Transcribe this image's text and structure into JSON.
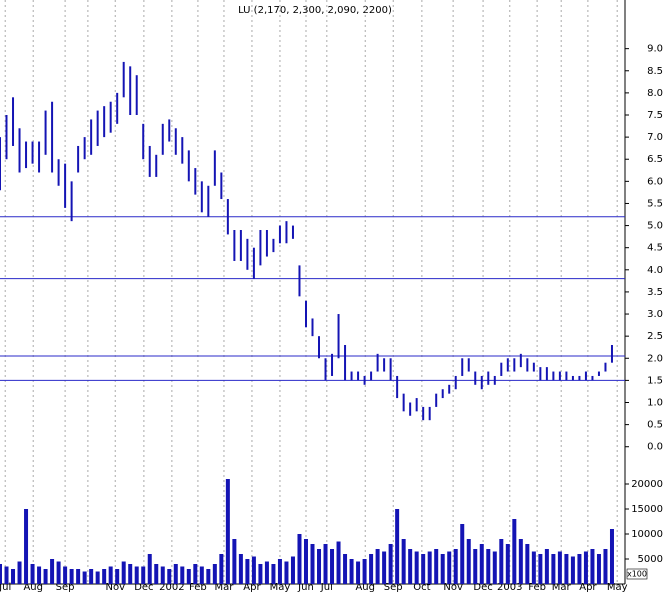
{
  "chart_data": [
    {
      "type": "range-bar",
      "title": "LU (2,170, 2,300, 2,090, 2200)",
      "color": "#1414b4",
      "level_color": "#2a2ac8",
      "grid": true,
      "xlim": [
        0,
        96
      ],
      "ylim": [
        -0.3,
        10.1
      ],
      "yticks": [
        {
          "value": 0,
          "label": "0.0"
        },
        0.5,
        {
          "value": 1,
          "label": "1.0"
        },
        1.5,
        {
          "value": 2,
          "label": "2.0"
        },
        2.5,
        {
          "value": 3,
          "label": "3.0"
        },
        3.5,
        {
          "value": 4,
          "label": "4.0"
        },
        4.5,
        {
          "value": 5,
          "label": "5.0"
        },
        5.5,
        {
          "value": 6,
          "label": "6.0"
        },
        6.5,
        {
          "value": 7,
          "label": "7.0"
        },
        7.5,
        {
          "value": 8,
          "label": "8.0"
        },
        8.5,
        {
          "value": 9,
          "label": "9.0"
        }
      ],
      "xticks": [
        {
          "value": 0.8,
          "label": "Jul"
        },
        {
          "value": 5.1,
          "label": "Aug"
        },
        {
          "value": 10,
          "label": "Sep"
        },
        {
          "value": 13.5,
          "label": null
        },
        {
          "value": 17.7,
          "label": "Nov"
        },
        {
          "value": 22.1,
          "label": "Dec"
        },
        {
          "value": 26.4,
          "label": "2002"
        },
        {
          "value": 30.4,
          "label": "Feb"
        },
        {
          "value": 34.4,
          "label": "Mar"
        },
        {
          "value": 38.7,
          "label": "Apr"
        },
        {
          "value": 43,
          "label": "May"
        },
        {
          "value": 47,
          "label": "Jun"
        },
        {
          "value": 50.2,
          "label": "Jul"
        },
        {
          "value": 56.1,
          "label": "Aug"
        },
        {
          "value": 60.4,
          "label": "Sep"
        },
        {
          "value": 64.8,
          "label": "Oct"
        },
        {
          "value": 69.6,
          "label": "Nov"
        },
        {
          "value": 74.2,
          "label": "Dec"
        },
        {
          "value": 78.3,
          "label": "2003"
        },
        {
          "value": 82.5,
          "label": "Feb"
        },
        {
          "value": 86.2,
          "label": "Mar"
        },
        {
          "value": 90.3,
          "label": "Apr"
        },
        {
          "value": 94.8,
          "label": "May"
        }
      ],
      "levels": [
        5.2,
        3.8,
        2.05,
        1.5
      ],
      "x": [
        0,
        1,
        2,
        3,
        4,
        5,
        6,
        7,
        8,
        9,
        10,
        11,
        12,
        13,
        14,
        15,
        16,
        17,
        18,
        19,
        20,
        21,
        22,
        23,
        24,
        25,
        26,
        27,
        28,
        29,
        30,
        31,
        32,
        33,
        34,
        35,
        36,
        37,
        38,
        39,
        40,
        41,
        42,
        43,
        44,
        45,
        46,
        47,
        48,
        49,
        50,
        51,
        52,
        53,
        54,
        55,
        56,
        57,
        58,
        59,
        60,
        61,
        62,
        63,
        64,
        65,
        66,
        67,
        68,
        69,
        70,
        71,
        72,
        73,
        74,
        75,
        76,
        77,
        78,
        79,
        80,
        81,
        82,
        83,
        84,
        85,
        86,
        87,
        88,
        89,
        90,
        91,
        92,
        93,
        94
      ],
      "high": [
        7.0,
        7.5,
        7.9,
        7.2,
        6.9,
        6.9,
        6.9,
        7.6,
        7.8,
        6.5,
        6.4,
        6.0,
        6.8,
        7.0,
        7.4,
        7.6,
        7.7,
        7.8,
        8.0,
        8.7,
        8.6,
        8.4,
        7.3,
        6.8,
        6.6,
        7.3,
        7.4,
        7.2,
        7.0,
        6.7,
        6.3,
        6.0,
        5.9,
        6.7,
        6.2,
        5.6,
        4.9,
        4.9,
        4.7,
        4.5,
        4.9,
        4.9,
        4.7,
        5.0,
        5.1,
        5.0,
        4.1,
        3.3,
        2.9,
        2.5,
        2.0,
        2.1,
        3.0,
        2.3,
        1.7,
        1.7,
        1.6,
        1.7,
        2.1,
        2.0,
        2.0,
        1.6,
        1.2,
        1.0,
        1.1,
        0.9,
        0.9,
        1.2,
        1.3,
        1.4,
        1.6,
        2.0,
        2.0,
        1.7,
        1.6,
        1.7,
        1.6,
        1.9,
        2.0,
        2.0,
        2.1,
        2.0,
        1.9,
        1.8,
        1.8,
        1.7,
        1.7,
        1.7,
        1.6,
        1.6,
        1.7,
        1.6,
        1.7,
        1.9,
        2.3
      ],
      "low": [
        5.8,
        6.5,
        6.8,
        6.2,
        6.3,
        6.4,
        6.2,
        6.6,
        6.2,
        5.9,
        5.4,
        5.1,
        6.2,
        6.5,
        6.6,
        6.8,
        7.0,
        7.1,
        7.3,
        7.9,
        7.5,
        7.5,
        6.5,
        6.1,
        6.1,
        6.6,
        6.9,
        6.6,
        6.4,
        6.0,
        5.7,
        5.3,
        5.2,
        5.9,
        5.6,
        4.8,
        4.2,
        4.2,
        4.0,
        3.8,
        4.1,
        4.3,
        4.4,
        4.6,
        4.6,
        4.7,
        3.4,
        2.7,
        2.5,
        2.0,
        1.5,
        1.6,
        2.0,
        1.5,
        1.5,
        1.5,
        1.4,
        1.5,
        1.7,
        1.7,
        1.5,
        1.1,
        0.8,
        0.7,
        0.8,
        0.6,
        0.6,
        0.9,
        1.1,
        1.2,
        1.3,
        1.6,
        1.7,
        1.4,
        1.3,
        1.4,
        1.4,
        1.6,
        1.7,
        1.7,
        1.8,
        1.7,
        1.7,
        1.5,
        1.5,
        1.5,
        1.5,
        1.5,
        1.5,
        1.5,
        1.5,
        1.5,
        1.6,
        1.7,
        1.9
      ]
    },
    {
      "type": "bar",
      "color": "#1414b4",
      "unit_label": "x100",
      "ylim": [
        0,
        24000
      ],
      "yticks": [
        5000,
        10000,
        15000,
        20000
      ],
      "x": [
        0,
        1,
        2,
        3,
        4,
        5,
        6,
        7,
        8,
        9,
        10,
        11,
        12,
        13,
        14,
        15,
        16,
        17,
        18,
        19,
        20,
        21,
        22,
        23,
        24,
        25,
        26,
        27,
        28,
        29,
        30,
        31,
        32,
        33,
        34,
        35,
        36,
        37,
        38,
        39,
        40,
        41,
        42,
        43,
        44,
        45,
        46,
        47,
        48,
        49,
        50,
        51,
        52,
        53,
        54,
        55,
        56,
        57,
        58,
        59,
        60,
        61,
        62,
        63,
        64,
        65,
        66,
        67,
        68,
        69,
        70,
        71,
        72,
        73,
        74,
        75,
        76,
        77,
        78,
        79,
        80,
        81,
        82,
        83,
        84,
        85,
        86,
        87,
        88,
        89,
        90,
        91,
        92,
        93,
        94
      ],
      "values": [
        4000,
        3500,
        3000,
        4500,
        15000,
        4000,
        3500,
        3000,
        5000,
        4500,
        3500,
        3000,
        3000,
        2500,
        3000,
        2500,
        3000,
        3500,
        3000,
        4500,
        4000,
        3500,
        3500,
        6000,
        4000,
        3500,
        3000,
        4000,
        3500,
        3000,
        4000,
        3500,
        3000,
        4000,
        6000,
        21000,
        9000,
        6000,
        5000,
        5500,
        4000,
        4500,
        4000,
        5000,
        4500,
        5500,
        10000,
        9000,
        8000,
        7000,
        8000,
        7000,
        8500,
        6000,
        5000,
        4500,
        5000,
        6000,
        7000,
        6500,
        8000,
        15000,
        9000,
        7000,
        6500,
        6000,
        6500,
        7000,
        6000,
        6500,
        7000,
        12000,
        9000,
        7000,
        8000,
        7000,
        6500,
        9000,
        8000,
        13000,
        9000,
        8000,
        6500,
        6000,
        7000,
        6000,
        6500,
        6000,
        5500,
        6000,
        6500,
        7000,
        6000,
        7000,
        11000
      ]
    }
  ]
}
